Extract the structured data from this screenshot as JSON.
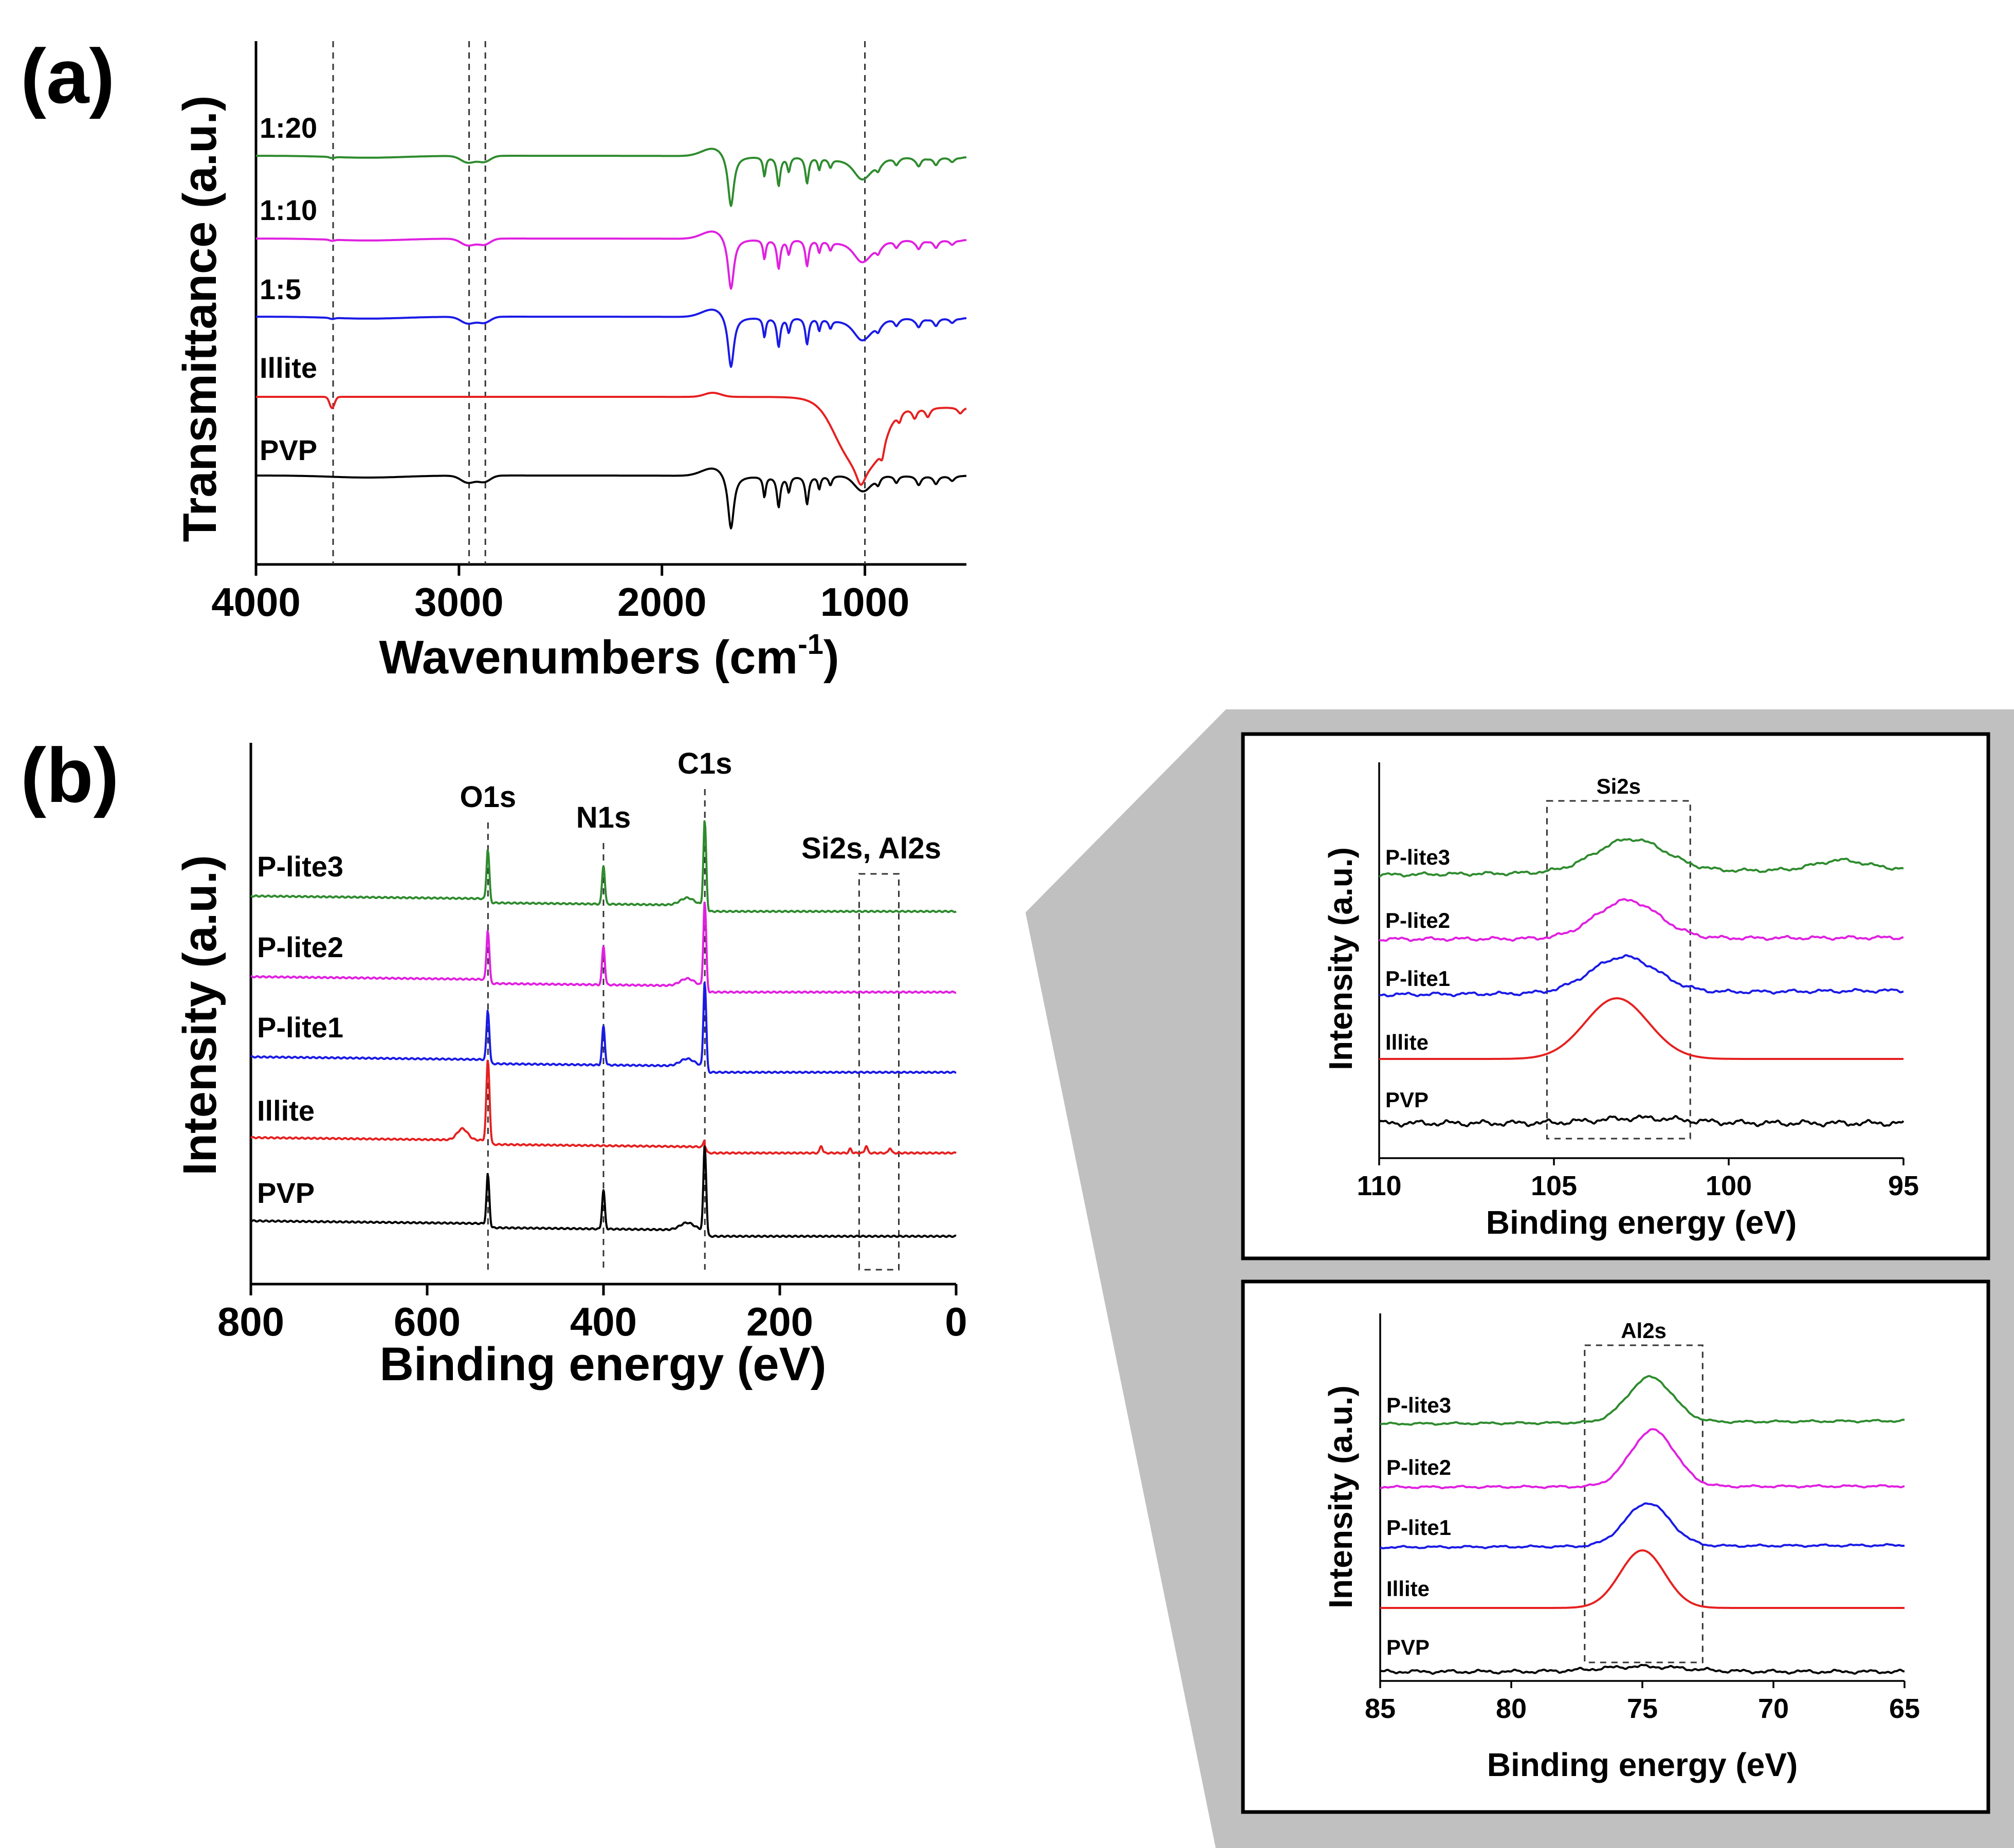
{
  "colors": {
    "green": "#2e8b2e",
    "magenta": "#e020e0",
    "blue": "#1a1ae6",
    "red": "#e62020",
    "black": "#000000",
    "gray": "#c0c0c0"
  },
  "panel_a": {
    "letter": "(a)",
    "chart_data": {
      "type": "line",
      "xlabel": "Wavenumbers (cm",
      "xlabel_sup": "-1",
      "xlabel_end": ")",
      "ylabel": "Transmittance (a.u.)",
      "xlim": [
        4000,
        500
      ],
      "xticks": [
        "4000",
        "3000",
        "2000",
        "1000"
      ],
      "xtick_values": [
        4000,
        3000,
        2000,
        1000
      ],
      "reference_lines": [
        3620,
        2950,
        2870,
        1000
      ],
      "series": [
        {
          "name": "1:20",
          "color": "green"
        },
        {
          "name": "1:10",
          "color": "magenta"
        },
        {
          "name": "1:5",
          "color": "blue"
        },
        {
          "name": "Illite",
          "color": "red"
        },
        {
          "name": "PVP",
          "color": "black"
        }
      ]
    }
  },
  "panel_b": {
    "letter": "(b)",
    "chart_data": {
      "type": "line",
      "xlabel": "Binding energy (eV)",
      "ylabel": "Intensity (a.u.)",
      "xlim": [
        800,
        0
      ],
      "xticks": [
        "800",
        "600",
        "400",
        "200",
        "0"
      ],
      "xtick_values": [
        800,
        600,
        400,
        200,
        0
      ],
      "peaks": [
        {
          "label": "O1s",
          "x": 531
        },
        {
          "label": "N1s",
          "x": 400
        },
        {
          "label": "C1s",
          "x": 285
        }
      ],
      "box_label": "Si2s, Al2s",
      "box_range": [
        110,
        65
      ],
      "series": [
        {
          "name": "P-lite3",
          "color": "green"
        },
        {
          "name": "P-lite2",
          "color": "magenta"
        },
        {
          "name": "P-lite1",
          "color": "blue"
        },
        {
          "name": "Illite",
          "color": "red"
        },
        {
          "name": "PVP",
          "color": "black"
        }
      ]
    }
  },
  "inset_si": {
    "chart_data": {
      "type": "line",
      "title": "Si2s",
      "xlabel": "Binding energy (eV)",
      "ylabel": "Intensity (a.u.)",
      "xlim": [
        110,
        95
      ],
      "xticks": [
        "110",
        "105",
        "100",
        "95"
      ],
      "xtick_values": [
        110,
        105,
        100,
        95
      ],
      "box_range": [
        105.2,
        101.1
      ],
      "series": [
        {
          "name": "P-lite3",
          "color": "green",
          "peak_center": 102.8
        },
        {
          "name": "P-lite2",
          "color": "magenta",
          "peak_center": 102.9
        },
        {
          "name": "P-lite1",
          "color": "blue",
          "peak_center": 103.0
        },
        {
          "name": "Illite",
          "color": "red",
          "peak_center": 103.2
        },
        {
          "name": "PVP",
          "color": "black",
          "peak_center": null
        }
      ]
    }
  },
  "inset_al": {
    "chart_data": {
      "type": "line",
      "title": "Al2s",
      "xlabel": "Binding energy (eV)",
      "ylabel": "Intensity (a.u.)",
      "xlim": [
        85,
        65
      ],
      "xticks": [
        "85",
        "80",
        "75",
        "70",
        "65"
      ],
      "xtick_values": [
        85,
        80,
        75,
        70,
        65
      ],
      "box_range": [
        77.2,
        72.7
      ],
      "series": [
        {
          "name": "P-lite3",
          "color": "green",
          "peak_center": 74.7
        },
        {
          "name": "P-lite2",
          "color": "magenta",
          "peak_center": 74.6
        },
        {
          "name": "P-lite1",
          "color": "blue",
          "peak_center": 74.8
        },
        {
          "name": "Illite",
          "color": "red",
          "peak_center": 75.0
        },
        {
          "name": "PVP",
          "color": "black",
          "peak_center": null
        }
      ]
    }
  }
}
